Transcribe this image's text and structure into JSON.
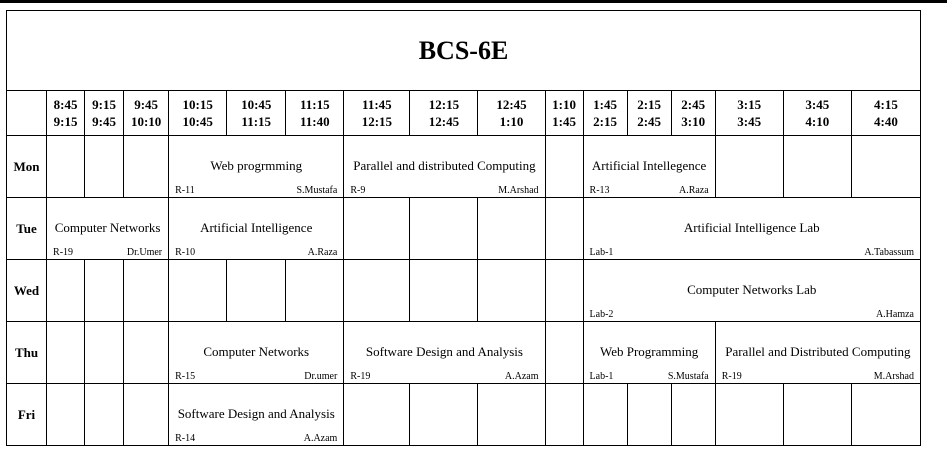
{
  "title": "BCS-6E",
  "times": [
    [
      "8:45",
      "9:15"
    ],
    [
      "9:15",
      "9:45"
    ],
    [
      "9:45",
      "10:10"
    ],
    [
      "10:15",
      "10:45"
    ],
    [
      "10:45",
      "11:15"
    ],
    [
      "11:15",
      "11:40"
    ],
    [
      "11:45",
      "12:15"
    ],
    [
      "12:15",
      "12:45"
    ],
    [
      "12:45",
      "1:10"
    ],
    [
      "1:10",
      "1:45"
    ],
    [
      "1:45",
      "2:15"
    ],
    [
      "2:15",
      "2:45"
    ],
    [
      "2:45",
      "3:10"
    ],
    [
      "3:15",
      "3:45"
    ],
    [
      "3:45",
      "4:10"
    ],
    [
      "4:15",
      "4:40"
    ]
  ],
  "days": {
    "mon": "Mon",
    "tue": "Tue",
    "wed": "Wed",
    "thu": "Thu",
    "fri": "Fri"
  },
  "classes": {
    "mon_web": {
      "subject": "Web progrmming",
      "room": "R-11",
      "teacher": "S.Mustafa"
    },
    "mon_pdc": {
      "subject": "Parallel and distributed Computing",
      "room": "R-9",
      "teacher": "M.Arshad"
    },
    "mon_ai": {
      "subject": "Artificial Intellegence",
      "room": "R-13",
      "teacher": "A.Raza"
    },
    "tue_cn": {
      "subject": "Computer Networks",
      "room": "R-19",
      "teacher": "Dr.Umer"
    },
    "tue_ai": {
      "subject": "Artificial Intelligence",
      "room": "R-10",
      "teacher": "A.Raza"
    },
    "tue_ailab": {
      "subject": "Artificial Intelligence Lab",
      "room": "Lab-1",
      "teacher": "A.Tabassum"
    },
    "wed_cnlab": {
      "subject": "Computer Networks Lab",
      "room": "Lab-2",
      "teacher": "A.Hamza"
    },
    "thu_cn": {
      "subject": "Computer Networks",
      "room": "R-15",
      "teacher": "Dr.umer"
    },
    "thu_sda": {
      "subject": "Software Design and Analysis",
      "room": "R-19",
      "teacher": "A.Azam"
    },
    "thu_web": {
      "subject": "Web Programming",
      "room": "Lab-1",
      "teacher": "S.Mustafa"
    },
    "thu_pdc": {
      "subject": "Parallel and Distributed Computing",
      "room": "R-19",
      "teacher": "M.Arshad"
    },
    "fri_sda": {
      "subject": "Software Design and Analysis",
      "room": "R-14",
      "teacher": "A.Azam"
    }
  }
}
